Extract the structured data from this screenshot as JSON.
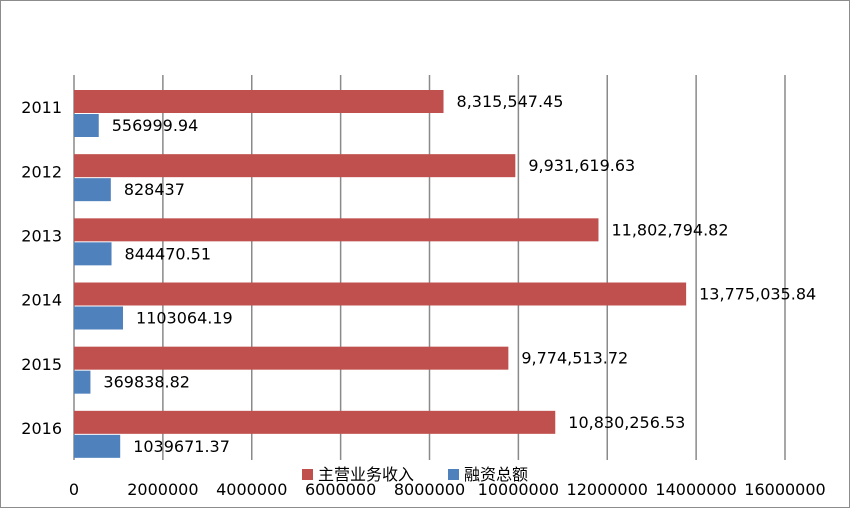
{
  "chart_data": {
    "type": "bar",
    "orientation": "horizontal",
    "categories": [
      "2011",
      "2012",
      "2013",
      "2014",
      "2015",
      "2016"
    ],
    "series": [
      {
        "name": "主营业务收入",
        "color": "#C0504D",
        "values": [
          8315547.45,
          9931619.63,
          11802794.82,
          13775035.84,
          9774513.72,
          10830256.53
        ],
        "labels": [
          "8,315,547.45",
          "9,931,619.63",
          "11,802,794.82",
          "13,775,035.84",
          "9,774,513.72",
          "10,830,256.53"
        ]
      },
      {
        "name": "融资总额",
        "color": "#4F81BD",
        "values": [
          556999.94,
          828437,
          844470.51,
          1103064.19,
          369838.82,
          1039671.37
        ],
        "labels": [
          "556999.94",
          "828437",
          "844470.51",
          "1103064.19",
          "369838.82",
          "1039671.37"
        ]
      }
    ],
    "xlim": [
      0,
      16000000
    ],
    "x_ticks": [
      0,
      2000000,
      4000000,
      6000000,
      8000000,
      10000000,
      12000000,
      14000000,
      16000000
    ],
    "x_tick_labels": [
      "0",
      "2000000",
      "4000000",
      "6000000",
      "8000000",
      "10000000",
      "12000000",
      "14000000",
      "16000000"
    ],
    "grid": "vertical",
    "legend": "bottom",
    "title": "",
    "xlabel": "",
    "ylabel": ""
  }
}
